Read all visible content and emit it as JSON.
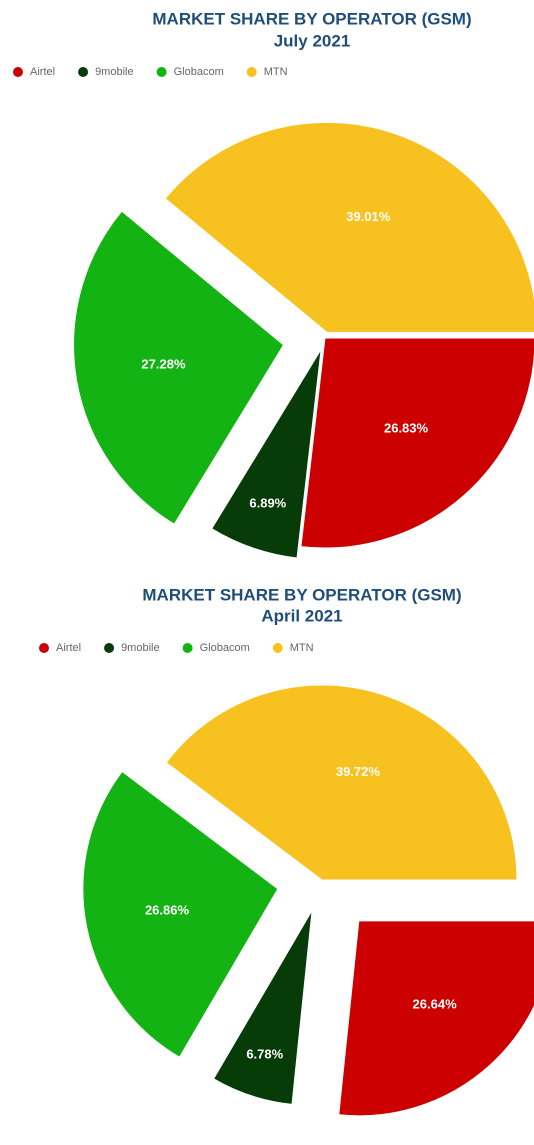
{
  "chart_data": [
    {
      "type": "pie",
      "title": "MARKET SHARE BY OPERATOR (GSM)",
      "subtitle": "July 2021",
      "categories": [
        "Airtel",
        "9mobile",
        "Globacom",
        "MTN"
      ],
      "values": [
        26.83,
        6.89,
        27.28,
        39.01
      ],
      "value_labels": [
        "26.83%",
        "6.89%",
        "27.28%",
        "39.01%"
      ],
      "colors": [
        "#cc0000",
        "#073b07",
        "#13b313",
        "#f7c11f"
      ],
      "legend": "top"
    },
    {
      "type": "pie",
      "title": "MARKET SHARE BY OPERATOR (GSM)",
      "subtitle": "April 2021",
      "categories": [
        "Airtel",
        "9mobile",
        "Globacom",
        "MTN"
      ],
      "values": [
        26.64,
        6.78,
        26.86,
        39.72
      ],
      "value_labels": [
        "26.64%",
        "6.78%",
        "26.86%",
        "39.72%"
      ],
      "colors": [
        "#cc0000",
        "#073b07",
        "#13b313",
        "#f7c11f"
      ],
      "legend": "top"
    }
  ]
}
